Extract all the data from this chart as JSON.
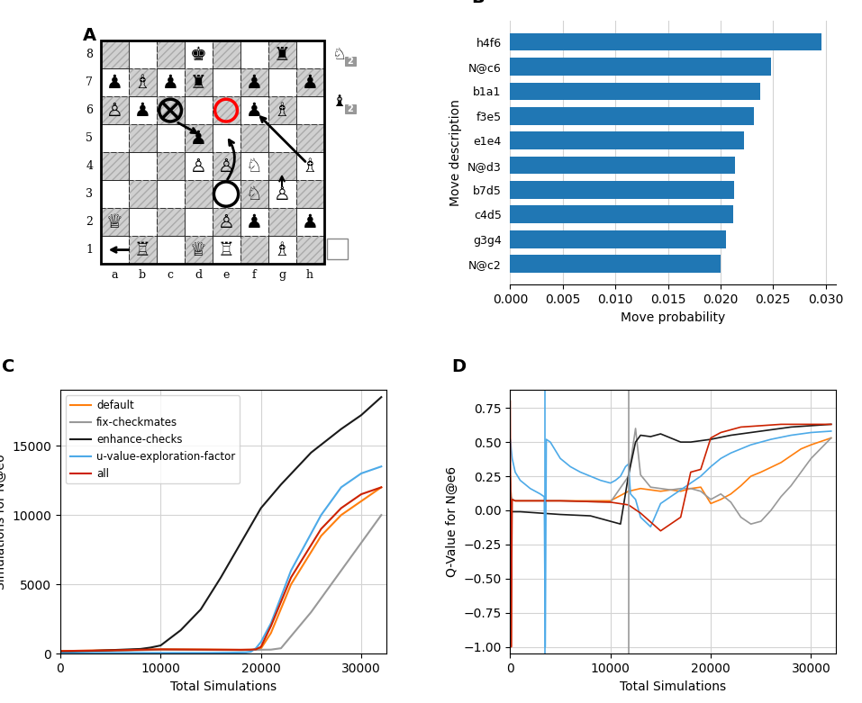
{
  "panel_B": {
    "moves": [
      "N@c2",
      "g3g4",
      "c4d5",
      "b7d5",
      "N@d3",
      "e1e4",
      "f3e5",
      "b1a1",
      "N@c6",
      "h4f6"
    ],
    "probs": [
      0.02,
      0.0205,
      0.0212,
      0.0213,
      0.0214,
      0.0222,
      0.0232,
      0.0238,
      0.0248,
      0.0296
    ],
    "bar_color": "#2077b4",
    "xlabel": "Move probability",
    "ylabel": "Move description",
    "xlim": [
      0,
      0.031
    ]
  },
  "panel_C": {
    "legend_labels": [
      "default",
      "fix-checkmates",
      "enhance-checks",
      "u-value-exploration-factor",
      "all"
    ],
    "colors": [
      "#ff7f0e",
      "#999999",
      "#1a1a1a",
      "#4daae8",
      "#cc2200"
    ],
    "ylabel": "Simulations for N@e6",
    "xlabel": "Total Simulations",
    "ylim": [
      0,
      19000
    ],
    "yticks": [
      0,
      5000,
      10000,
      15000
    ],
    "xticks": [
      0,
      10000,
      20000,
      30000
    ]
  },
  "panel_D": {
    "legend_labels": [
      "default",
      "fix-checkmates",
      "enhance-checks",
      "u-value-exploration-factor",
      "all"
    ],
    "colors": [
      "#ff7f0e",
      "#999999",
      "#1a1a1a",
      "#4daae8",
      "#cc2200"
    ],
    "ylabel": "Q-Value for N@e6",
    "xlabel": "Total Simulations",
    "ylim": [
      -1.05,
      0.88
    ],
    "yticks": [
      -1.0,
      -0.75,
      -0.5,
      -0.25,
      0.0,
      0.25,
      0.5,
      0.75
    ],
    "xticks": [
      0,
      10000,
      20000,
      30000
    ]
  }
}
